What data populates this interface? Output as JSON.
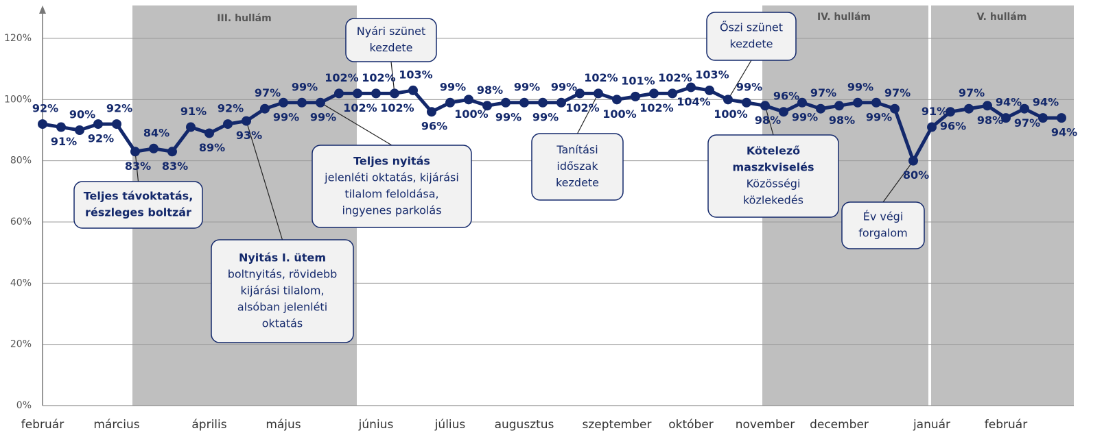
{
  "chart_data": {
    "type": "line",
    "bands": [
      "III. hullám",
      "IV. hullám",
      "V. hullám"
    ],
    "categories": [
      "február",
      null,
      null,
      null,
      "március",
      null,
      null,
      null,
      null,
      "április",
      null,
      null,
      null,
      "május",
      null,
      null,
      null,
      null,
      "június",
      null,
      null,
      null,
      "július",
      null,
      null,
      null,
      "augusztus",
      null,
      null,
      null,
      null,
      "szeptember",
      null,
      null,
      null,
      "október",
      null,
      null,
      null,
      "november",
      null,
      null,
      null,
      "december",
      null,
      null,
      null,
      null,
      "január",
      null,
      null,
      null,
      "február",
      null,
      null,
      null
    ],
    "series": [
      {
        "name": null,
        "color": "#13286b",
        "values": [
          92,
          91,
          90,
          92,
          92,
          83,
          84,
          83,
          91,
          89,
          92,
          93,
          97,
          99,
          99,
          99,
          102,
          102,
          102,
          102,
          103,
          96,
          99,
          100,
          98,
          99,
          99,
          99,
          99,
          102,
          102,
          100,
          101,
          102,
          102,
          104,
          103,
          100,
          99,
          98,
          96,
          99,
          97,
          98,
          99,
          99,
          97,
          80,
          91,
          96,
          97,
          98,
          94,
          97,
          94,
          94
        ],
        "value_labels": [
          "92%",
          "91%",
          "90%",
          "92%",
          "92%",
          "83%",
          "84%",
          "83%",
          "91%",
          "89%",
          "92%",
          "93%",
          "97%",
          "99%",
          "99%",
          "99%",
          "102%",
          "102%",
          "102%",
          "102%",
          "103%",
          "96%",
          "99%",
          "100%",
          "98%",
          "99%",
          "99%",
          "99%",
          "99%",
          "102%",
          "102%",
          "100%",
          "101%",
          "102%",
          "102%",
          "104%",
          "103%",
          "100%",
          "99%",
          "98%",
          "96%",
          "99%",
          "97%",
          "98%",
          "99%",
          "99%",
          "97%",
          "80%",
          "91%",
          "96%",
          "97%",
          "98%",
          "94%",
          "97%",
          "94%",
          "94%"
        ]
      }
    ],
    "ylim": [
      0,
      120
    ],
    "yticks": [
      {
        "value": 0,
        "label": "0%"
      },
      {
        "value": 20,
        "label": "20%"
      },
      {
        "value": 40,
        "label": "40%"
      },
      {
        "value": 60,
        "label": "60%"
      },
      {
        "value": 80,
        "label": "80%"
      },
      {
        "value": 100,
        "label": "100%"
      },
      {
        "value": 120,
        "label": "120%"
      }
    ],
    "grid": true,
    "annotations": [
      {
        "title": [
          "Teljes távoktatás,",
          "részleges boltzár"
        ]
      },
      {
        "title": [
          "Nyitás I. ütem"
        ],
        "text": [
          "boltnyitás, rövidebb",
          "kijárási tilalom,",
          "alsóban jelenléti",
          "oktatás"
        ]
      },
      {
        "text": [
          "Nyári szünet",
          "kezdete"
        ]
      },
      {
        "title": [
          "Teljes nyitás"
        ],
        "text": [
          "jelenléti oktatás, kijárási",
          "tilalom feloldása,",
          "ingyenes parkolás"
        ]
      },
      {
        "text": [
          "Tanítási",
          "időszak",
          "kezdete"
        ]
      },
      {
        "text": [
          "Őszi szünet",
          "kezdete"
        ]
      },
      {
        "title": [
          "Kötelező",
          "maszkviselés"
        ],
        "text": [
          "Közösségi",
          "közlekedés"
        ]
      },
      {
        "text": [
          "Év végi",
          "forgalom"
        ]
      }
    ]
  }
}
